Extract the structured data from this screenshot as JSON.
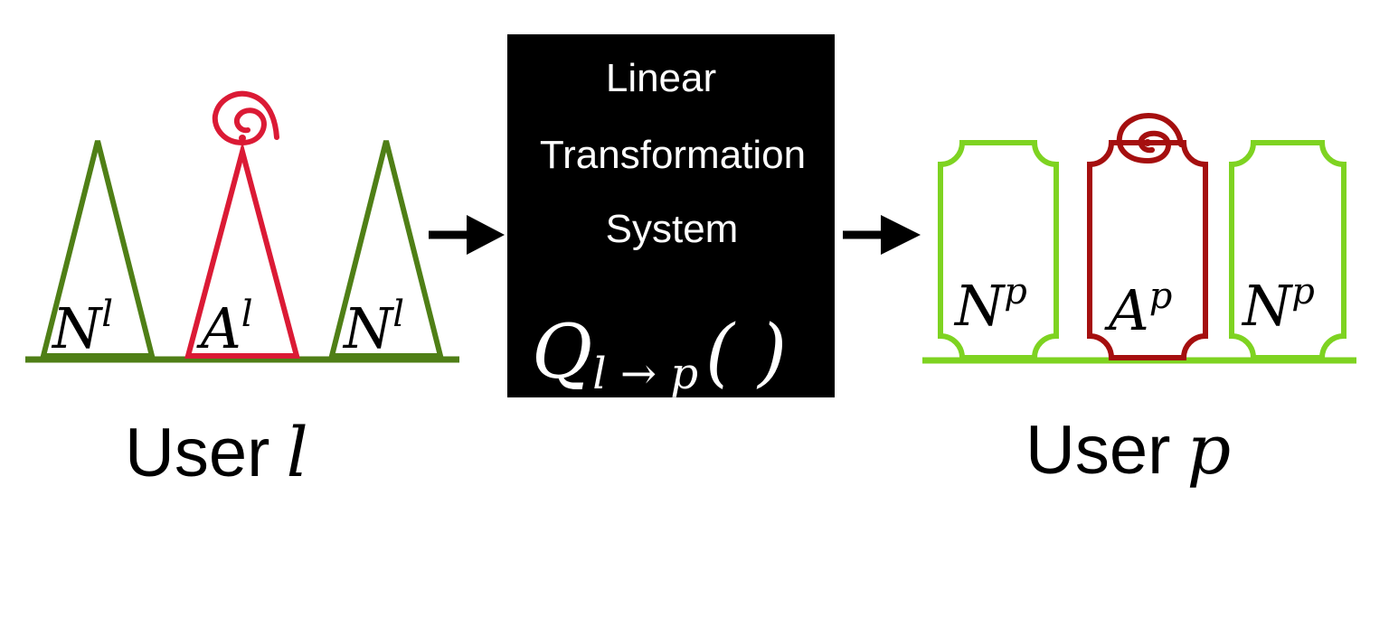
{
  "left_user": {
    "label_prefix": "User",
    "label_var": "l",
    "shapes": [
      {
        "base": "N",
        "sup": "l",
        "kind": "normal"
      },
      {
        "base": "A",
        "sup": "l",
        "kind": "anomaly"
      },
      {
        "base": "N",
        "sup": "l",
        "kind": "normal"
      }
    ]
  },
  "system": {
    "line1": "Linear",
    "line2": "Transformation",
    "line3": "System",
    "func_base": "Q",
    "func_sub": "l → p",
    "func_parens": "( )"
  },
  "right_user": {
    "label_prefix": "User",
    "label_var": "p",
    "shapes": [
      {
        "base": "N",
        "sup": "p",
        "kind": "normal"
      },
      {
        "base": "A",
        "sup": "p",
        "kind": "anomaly"
      },
      {
        "base": "N",
        "sup": "p",
        "kind": "normal"
      }
    ]
  },
  "colors": {
    "left_normal": "#4f7f16",
    "left_anomaly": "#db1a35",
    "right_normal": "#7ed321",
    "right_anomaly": "#a50f0f",
    "box": "#000000",
    "arrow": "#000000"
  }
}
